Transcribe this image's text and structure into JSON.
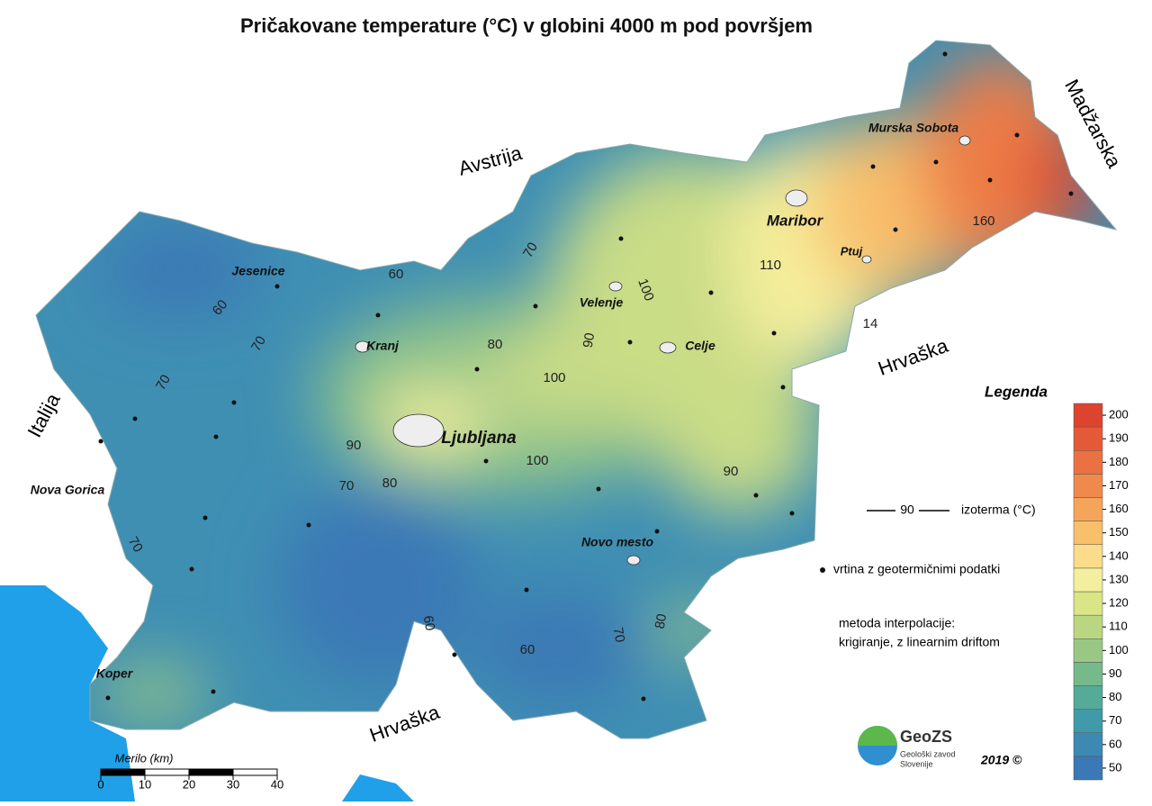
{
  "title": "Pričakovane temperature (°C) v globini 4000 m pod površjem",
  "countries": [
    "Avstrija",
    "Madžarska",
    "Hrvaška",
    "Hrvaška",
    "Italija"
  ],
  "cities": [
    "Murska Sobota",
    "Maribor",
    "Ptuj",
    "Jesenice",
    "Velenje",
    "Kranj",
    "Celje",
    "Ljubljana",
    "Nova Gorica",
    "Novo mesto",
    "Koper"
  ],
  "isotherm_labels": [
    "60",
    "60",
    "70",
    "70",
    "70",
    "70",
    "80",
    "80",
    "90",
    "90",
    "90",
    "100",
    "100",
    "100",
    "110",
    "160",
    "14",
    "70",
    "60",
    "60",
    "70",
    "80"
  ],
  "legend": {
    "title": "Legenda",
    "isotherm_sample": "90",
    "isotherm_text": "izoterma (°C)",
    "borehole_text": "vrtina z geotermičnimi podatki",
    "method_line1": "metoda interpolacije:",
    "method_line2": "krigiranje, z linearnim driftom"
  },
  "colorbar": {
    "ticks": [
      50,
      60,
      70,
      80,
      90,
      100,
      110,
      120,
      130,
      140,
      150,
      160,
      170,
      180,
      190,
      200
    ],
    "colors": [
      "#3a78b6",
      "#3d89b4",
      "#409aa9",
      "#55aa98",
      "#76b98b",
      "#99c884",
      "#bbd680",
      "#dae585",
      "#f2ef9e",
      "#fbdc8a",
      "#f9c06c",
      "#f5a55a",
      "#ef8a4c",
      "#ea7242",
      "#e45a38",
      "#dc4430"
    ]
  },
  "scale": {
    "title": "Merilo  (km)",
    "ticks": [
      0,
      10,
      20,
      30,
      40
    ]
  },
  "logo": {
    "name": "GeoZS",
    "line1": "Geološki zavod",
    "line2": "Slovenije"
  },
  "year": "2019 ©"
}
